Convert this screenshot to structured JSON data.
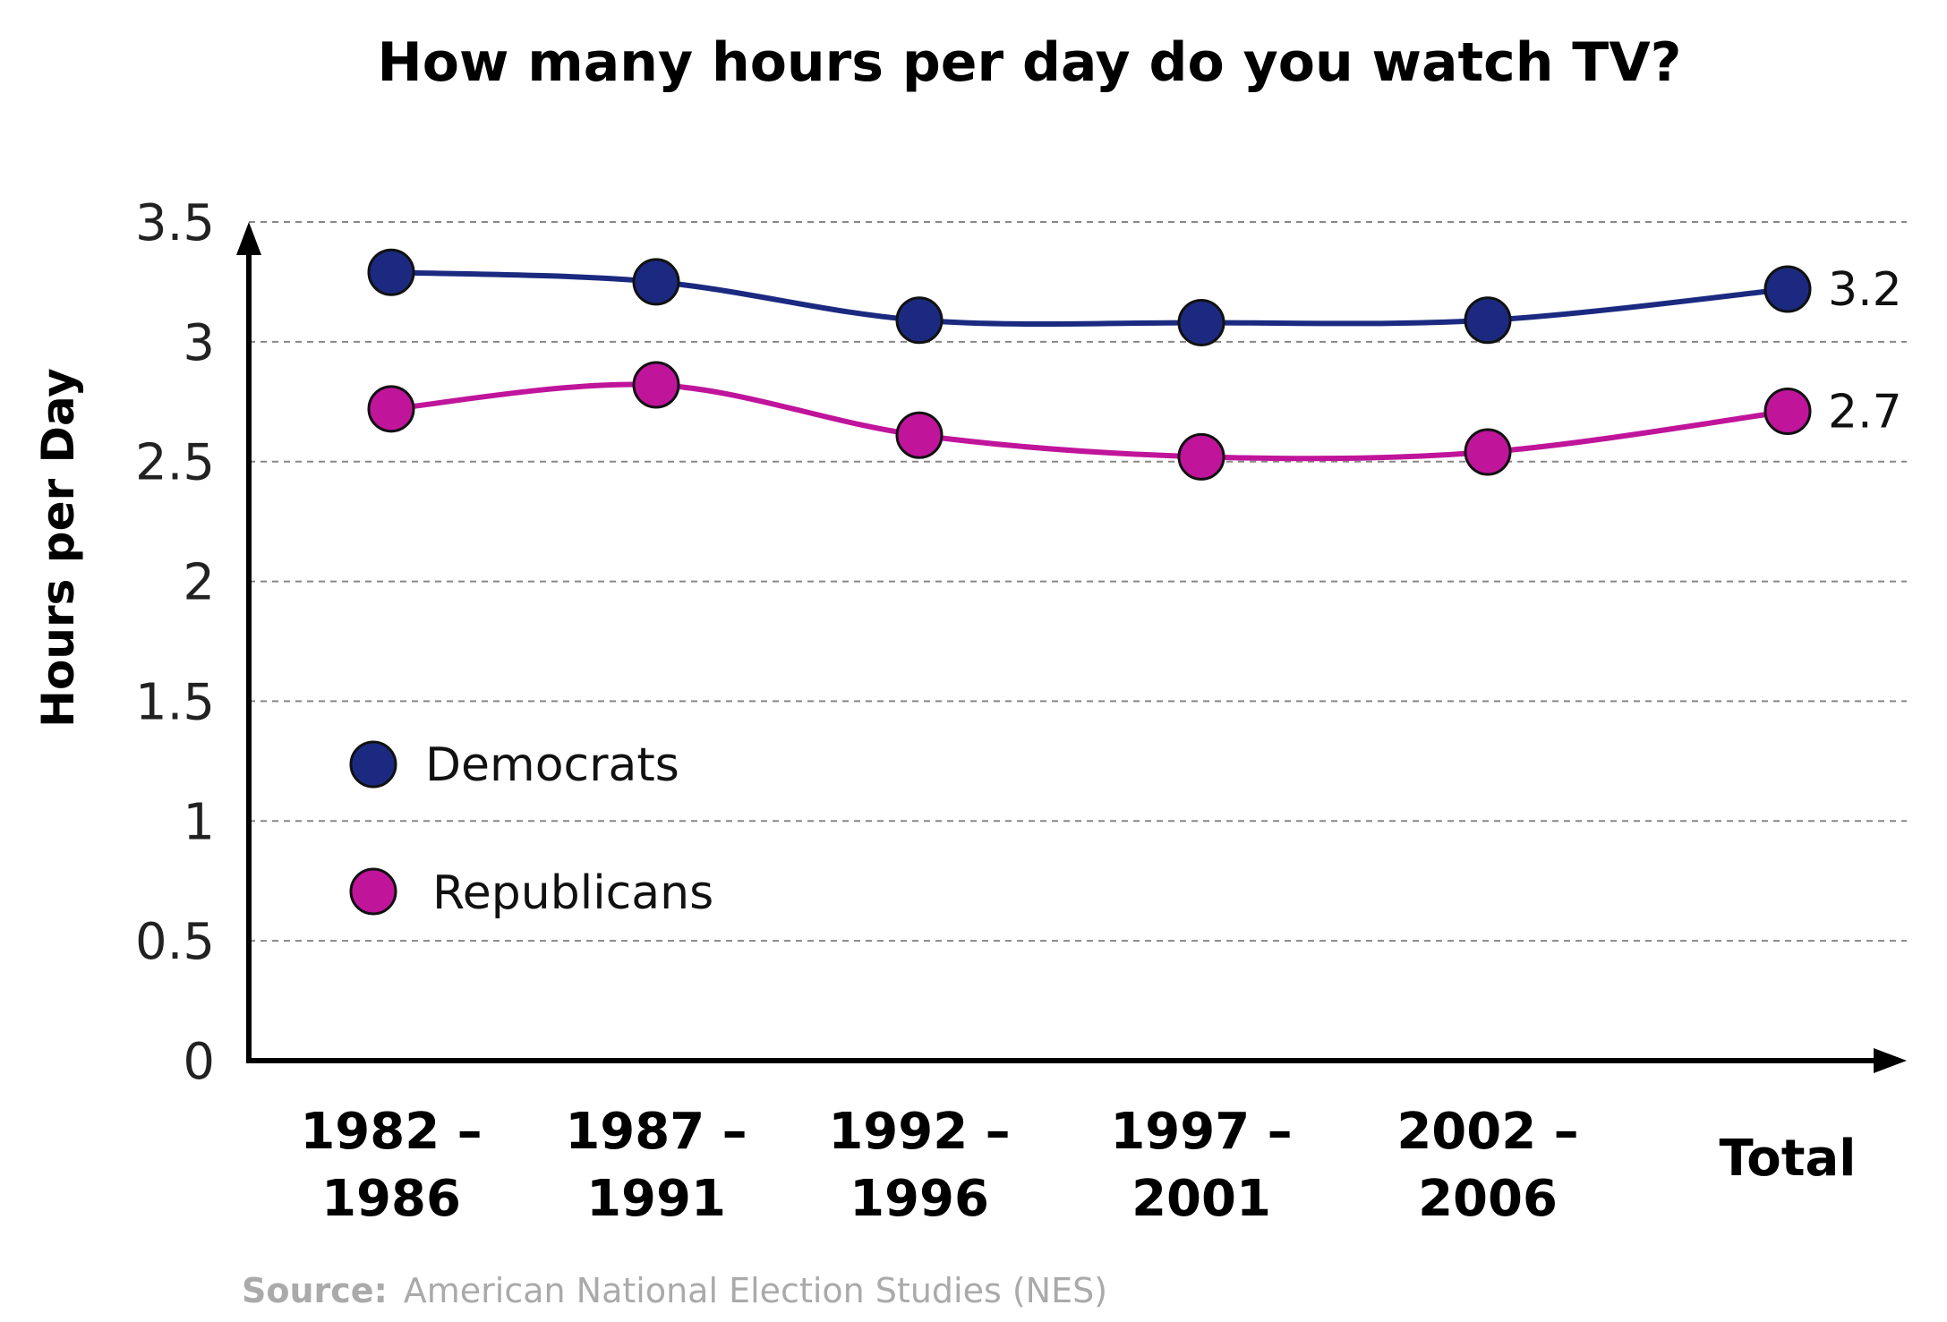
{
  "chart_data": {
    "type": "line",
    "title": "How many hours per day do you watch TV?",
    "xlabel": "",
    "ylabel": "Hours per Day",
    "categories": [
      [
        "1982 –",
        "1986"
      ],
      [
        "1987 –",
        "1991"
      ],
      [
        "1992 –",
        "1996"
      ],
      [
        "1997 –",
        "2001"
      ],
      [
        "2002 –",
        "2006"
      ],
      [
        "Total"
      ]
    ],
    "yticks": [
      "0",
      "0.5",
      "1",
      "1.5",
      "2",
      "2.5",
      "3",
      "3.5"
    ],
    "ylim": [
      0,
      3.5
    ],
    "grid": true,
    "legend_position": "lower-left",
    "series": [
      {
        "name": "Democrats",
        "color": "#1b2a80",
        "values": [
          3.29,
          3.25,
          3.09,
          3.08,
          3.09,
          3.22
        ],
        "end_label": "3.2"
      },
      {
        "name": "Republicans",
        "color": "#c0149b",
        "values": [
          2.72,
          2.82,
          2.61,
          2.52,
          2.54,
          2.71
        ],
        "end_label": "2.7"
      }
    ]
  },
  "source": {
    "key": "Source:",
    "value": "American National Election Studies (NES)"
  }
}
